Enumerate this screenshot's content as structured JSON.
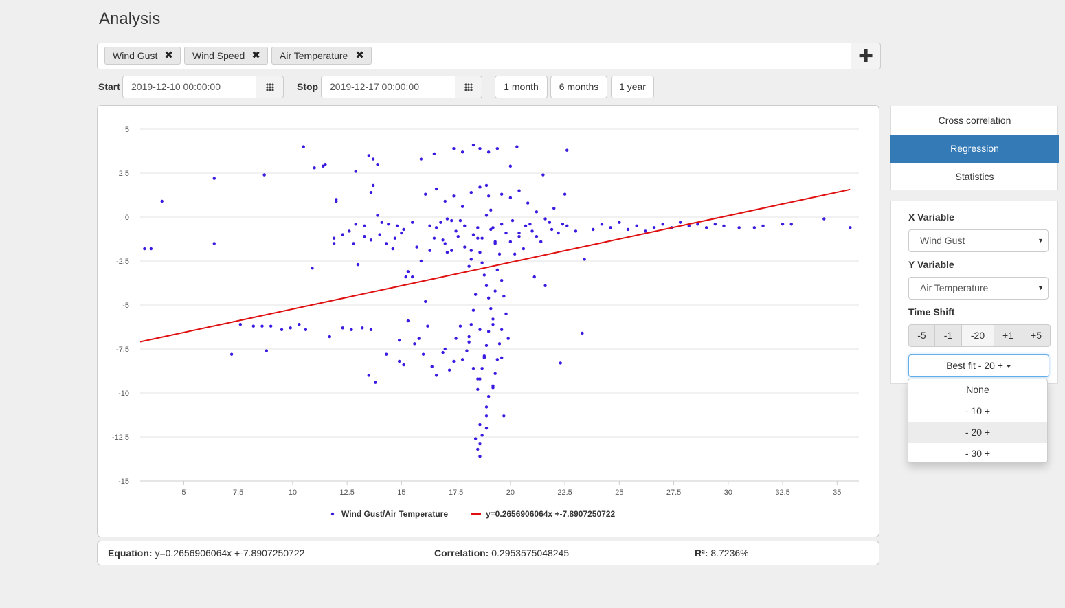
{
  "page": {
    "title": "Analysis"
  },
  "tags": [
    {
      "label": "Wind Gust"
    },
    {
      "label": "Wind Speed"
    },
    {
      "label": "Air Temperature"
    }
  ],
  "icons": {
    "remove": "close-icon",
    "add": "plus-icon",
    "calendar": "calendar-grid-icon",
    "caret": "caret-down-icon"
  },
  "date_range": {
    "start_label": "Start",
    "start_value": "2019-12-10 00:00:00",
    "stop_label": "Stop",
    "stop_value": "2019-12-17 00:00:00",
    "presets": [
      "1 month",
      "6 months",
      "1 year"
    ]
  },
  "tabs": [
    {
      "label": "Cross correlation",
      "active": false
    },
    {
      "label": "Regression",
      "active": true
    },
    {
      "label": "Statistics",
      "active": false
    }
  ],
  "controls": {
    "x_label": "X Variable",
    "x_value": "Wind Gust",
    "y_label": "Y Variable",
    "y_value": "Air Temperature",
    "shift_label": "Time Shift",
    "shift_buttons": [
      "-5",
      "-1",
      "-20",
      "+1",
      "+5"
    ],
    "best_fit_label": "Best fit - 20 +",
    "best_fit_options": [
      "None",
      "- 10 +",
      "- 20 +",
      "- 30 +"
    ],
    "best_fit_selected": 2
  },
  "stats": {
    "equation_label": "Equation:",
    "equation_value": "y=0.2656906064x +-7.8907250722",
    "correlation_label": "Correlation:",
    "correlation_value": "0.2953575048245",
    "r2_label": "R²:",
    "r2_value": "8.7236%"
  },
  "colors": {
    "accent": "#337ab7",
    "points": "#3a1ce0",
    "fit_line": "#e01010"
  },
  "chart_data": {
    "type": "scatter",
    "xlim": [
      3,
      36
    ],
    "ylim": [
      -15,
      5
    ],
    "x_ticks": [
      5,
      7.5,
      10,
      12.5,
      15,
      17.5,
      20,
      22.5,
      25,
      27.5,
      30,
      32.5,
      35
    ],
    "x_tick_labels": [
      "5",
      "7.5",
      "10",
      "12.5",
      "15",
      "17.5",
      "20",
      "22.5",
      "25",
      "27.5",
      "30",
      "32.5",
      "35"
    ],
    "y_ticks": [
      5,
      2.5,
      0,
      -2.5,
      -5,
      -7.5,
      -10,
      -12.5,
      -15
    ],
    "y_tick_labels": [
      "5",
      "2.5",
      "0",
      "-2.5",
      "-5",
      "-7.5",
      "-10",
      "-12.5",
      "-15"
    ],
    "grid": true,
    "legend_position": "bottom-center",
    "series": [
      {
        "name": "Wind Gust/Air Temperature",
        "kind": "points",
        "points": [
          [
            3.2,
            -1.8
          ],
          [
            3.5,
            -1.8
          ],
          [
            4.0,
            0.9
          ],
          [
            6.4,
            2.2
          ],
          [
            6.4,
            -1.5
          ],
          [
            8.7,
            2.4
          ],
          [
            7.2,
            -7.8
          ],
          [
            8.8,
            -7.6
          ],
          [
            10.5,
            4.0
          ],
          [
            10.9,
            -2.9
          ],
          [
            11.0,
            2.8
          ],
          [
            11.4,
            2.9
          ],
          [
            11.5,
            3.0
          ],
          [
            11.7,
            -6.8
          ],
          [
            11.9,
            -1.2
          ],
          [
            11.9,
            -1.5
          ],
          [
            12.0,
            1.0
          ],
          [
            12.0,
            0.9
          ],
          [
            12.3,
            -1.0
          ],
          [
            12.6,
            -0.8
          ],
          [
            12.8,
            -1.5
          ],
          [
            12.9,
            2.6
          ],
          [
            13.0,
            -2.7
          ],
          [
            13.3,
            -1.1
          ],
          [
            13.5,
            3.5
          ],
          [
            13.7,
            3.3
          ],
          [
            13.9,
            3.0
          ],
          [
            13.6,
            1.4
          ],
          [
            13.7,
            1.8
          ],
          [
            13.9,
            0.1
          ],
          [
            14.1,
            -0.3
          ],
          [
            14.3,
            -1.5
          ],
          [
            14.6,
            -1.8
          ],
          [
            14.8,
            -0.5
          ],
          [
            15.0,
            -0.9
          ],
          [
            15.2,
            -3.4
          ],
          [
            15.3,
            -3.1
          ],
          [
            15.5,
            -0.3
          ],
          [
            15.7,
            -1.7
          ],
          [
            15.9,
            3.3
          ],
          [
            16.1,
            -4.8
          ],
          [
            16.3,
            -0.5
          ],
          [
            16.5,
            -1.2
          ],
          [
            16.8,
            -0.3
          ],
          [
            17.0,
            -1.5
          ],
          [
            17.1,
            -0.1
          ],
          [
            17.3,
            -1.9
          ],
          [
            17.5,
            -0.8
          ],
          [
            17.7,
            -0.2
          ],
          [
            17.9,
            -1.7
          ],
          [
            18.2,
            -2.4
          ],
          [
            18.5,
            -0.6
          ],
          [
            18.7,
            -1.2
          ],
          [
            18.9,
            0.1
          ],
          [
            19.1,
            -0.7
          ],
          [
            19.3,
            -1.5
          ],
          [
            19.6,
            -0.4
          ],
          [
            19.8,
            -0.9
          ],
          [
            20.1,
            -0.2
          ],
          [
            20.4,
            -1.1
          ],
          [
            20.7,
            -0.5
          ],
          [
            21.0,
            -0.8
          ],
          [
            21.4,
            -1.4
          ],
          [
            21.8,
            -0.3
          ],
          [
            22.2,
            -0.9
          ],
          [
            22.6,
            -0.5
          ],
          [
            23.0,
            -0.8
          ],
          [
            23.4,
            -2.4
          ],
          [
            23.8,
            -0.7
          ],
          [
            24.2,
            -0.4
          ],
          [
            24.6,
            -0.6
          ],
          [
            25.0,
            -0.3
          ],
          [
            25.4,
            -0.7
          ],
          [
            25.8,
            -0.5
          ],
          [
            26.2,
            -0.8
          ],
          [
            26.6,
            -0.6
          ],
          [
            27.0,
            -0.4
          ],
          [
            27.4,
            -0.6
          ],
          [
            27.8,
            -0.3
          ],
          [
            28.2,
            -0.5
          ],
          [
            28.6,
            -0.4
          ],
          [
            29.0,
            -0.6
          ],
          [
            29.4,
            -0.4
          ],
          [
            29.8,
            -0.5
          ],
          [
            30.5,
            -0.6
          ],
          [
            31.2,
            -0.6
          ],
          [
            31.6,
            -0.5
          ],
          [
            32.5,
            -0.4
          ],
          [
            32.9,
            -0.4
          ],
          [
            34.4,
            -0.1
          ],
          [
            35.6,
            -0.6
          ],
          [
            22.5,
            1.3
          ],
          [
            22.3,
            -8.3
          ],
          [
            23.3,
            -6.6
          ],
          [
            22.6,
            3.8
          ],
          [
            7.6,
            -6.1
          ],
          [
            8.2,
            -6.2
          ],
          [
            8.6,
            -6.2
          ],
          [
            9.0,
            -6.2
          ],
          [
            9.5,
            -6.4
          ],
          [
            9.9,
            -6.3
          ],
          [
            10.3,
            -6.1
          ],
          [
            10.6,
            -6.4
          ],
          [
            12.3,
            -6.3
          ],
          [
            12.7,
            -6.4
          ],
          [
            13.2,
            -6.3
          ],
          [
            13.6,
            -6.4
          ],
          [
            13.5,
            -9.0
          ],
          [
            13.8,
            -9.4
          ],
          [
            14.9,
            -7.0
          ],
          [
            15.3,
            -5.9
          ],
          [
            15.6,
            -7.2
          ],
          [
            16.0,
            -7.8
          ],
          [
            16.4,
            -8.5
          ],
          [
            16.6,
            -9.0
          ],
          [
            16.9,
            -7.7
          ],
          [
            17.2,
            -8.7
          ],
          [
            17.5,
            -6.9
          ],
          [
            17.8,
            -8.1
          ],
          [
            18.1,
            -7.1
          ],
          [
            18.3,
            -8.6
          ],
          [
            18.5,
            -9.2
          ],
          [
            18.6,
            -6.4
          ],
          [
            18.8,
            -7.9
          ],
          [
            19.2,
            -6.1
          ],
          [
            19.6,
            -8.0
          ],
          [
            19.9,
            -6.9
          ],
          [
            15.1,
            -8.4
          ],
          [
            15.8,
            -6.9
          ],
          [
            16.2,
            -6.2
          ],
          [
            17.0,
            -7.5
          ],
          [
            17.4,
            -8.2
          ],
          [
            17.7,
            -6.2
          ],
          [
            14.3,
            -7.8
          ],
          [
            14.9,
            -8.2
          ],
          [
            18.4,
            -12.6
          ],
          [
            18.5,
            -13.2
          ],
          [
            18.6,
            -11.8
          ],
          [
            18.7,
            -12.4
          ],
          [
            18.9,
            -11.3
          ],
          [
            19.0,
            -10.2
          ],
          [
            19.2,
            -9.7
          ],
          [
            19.7,
            -11.3
          ],
          [
            18.6,
            -12.9
          ],
          [
            18.6,
            -13.6
          ],
          [
            18.9,
            -10.8
          ],
          [
            18.9,
            -12.0
          ],
          [
            18.3,
            4.1
          ],
          [
            18.6,
            3.9
          ],
          [
            19.0,
            3.7
          ],
          [
            19.4,
            3.9
          ],
          [
            20.3,
            4.0
          ],
          [
            17.4,
            3.9
          ],
          [
            17.8,
            3.7
          ],
          [
            16.5,
            3.6
          ],
          [
            20.0,
            2.9
          ],
          [
            21.5,
            2.4
          ],
          [
            18.5,
            -1.2
          ],
          [
            18.6,
            -2.0
          ],
          [
            18.7,
            -2.6
          ],
          [
            18.8,
            -3.3
          ],
          [
            18.9,
            -3.9
          ],
          [
            19.0,
            -4.6
          ],
          [
            19.1,
            -5.2
          ],
          [
            19.2,
            -5.8
          ],
          [
            19.0,
            -6.5
          ],
          [
            18.9,
            -7.3
          ],
          [
            18.8,
            -8.0
          ],
          [
            18.7,
            -8.6
          ],
          [
            18.6,
            -9.2
          ],
          [
            18.5,
            -9.8
          ],
          [
            19.3,
            -4.2
          ],
          [
            19.4,
            -3.0
          ],
          [
            19.5,
            -2.1
          ],
          [
            19.3,
            -1.4
          ],
          [
            19.2,
            -0.6
          ],
          [
            19.1,
            0.4
          ],
          [
            19.0,
            1.2
          ],
          [
            18.9,
            1.8
          ],
          [
            18.4,
            -4.4
          ],
          [
            18.3,
            -5.3
          ],
          [
            18.2,
            -6.1
          ],
          [
            18.1,
            -6.8
          ],
          [
            18.0,
            -7.6
          ],
          [
            18.1,
            -2.8
          ],
          [
            18.2,
            -1.9
          ],
          [
            18.3,
            -1.0
          ],
          [
            19.6,
            -3.6
          ],
          [
            19.7,
            -4.5
          ],
          [
            19.8,
            -5.5
          ],
          [
            19.6,
            -6.4
          ],
          [
            19.5,
            -7.2
          ],
          [
            19.4,
            -8.1
          ],
          [
            19.3,
            -8.9
          ],
          [
            19.2,
            -9.6
          ],
          [
            20.0,
            -1.4
          ],
          [
            20.2,
            -2.1
          ],
          [
            20.4,
            -0.9
          ],
          [
            20.6,
            -1.8
          ],
          [
            20.9,
            -0.4
          ],
          [
            21.2,
            -1.1
          ],
          [
            21.1,
            -3.4
          ],
          [
            21.6,
            -3.9
          ],
          [
            16.6,
            -0.6
          ],
          [
            16.9,
            -1.3
          ],
          [
            17.1,
            -2.0
          ],
          [
            17.3,
            -0.2
          ],
          [
            17.6,
            -1.1
          ],
          [
            17.9,
            -0.5
          ],
          [
            16.3,
            -1.9
          ],
          [
            15.9,
            -2.5
          ],
          [
            15.5,
            -3.4
          ],
          [
            15.1,
            -0.7
          ],
          [
            14.7,
            -1.2
          ],
          [
            14.4,
            -0.4
          ],
          [
            14.0,
            -1.0
          ],
          [
            13.6,
            -1.3
          ],
          [
            13.3,
            -0.5
          ],
          [
            12.9,
            -0.4
          ],
          [
            16.1,
            1.3
          ],
          [
            16.6,
            1.6
          ],
          [
            17.0,
            0.9
          ],
          [
            17.4,
            1.2
          ],
          [
            17.8,
            0.6
          ],
          [
            18.2,
            1.4
          ],
          [
            18.6,
            1.7
          ],
          [
            19.6,
            1.3
          ],
          [
            20.0,
            1.1
          ],
          [
            20.4,
            1.5
          ],
          [
            20.8,
            0.8
          ],
          [
            21.2,
            0.3
          ],
          [
            21.6,
            -0.1
          ],
          [
            22.0,
            0.5
          ],
          [
            22.4,
            -0.4
          ],
          [
            21.9,
            -0.7
          ]
        ]
      },
      {
        "name": "y=0.2656906064x +-7.8907250722",
        "kind": "line",
        "points": [
          [
            3.0,
            -7.09
          ],
          [
            35.6,
            1.57
          ]
        ]
      }
    ]
  }
}
